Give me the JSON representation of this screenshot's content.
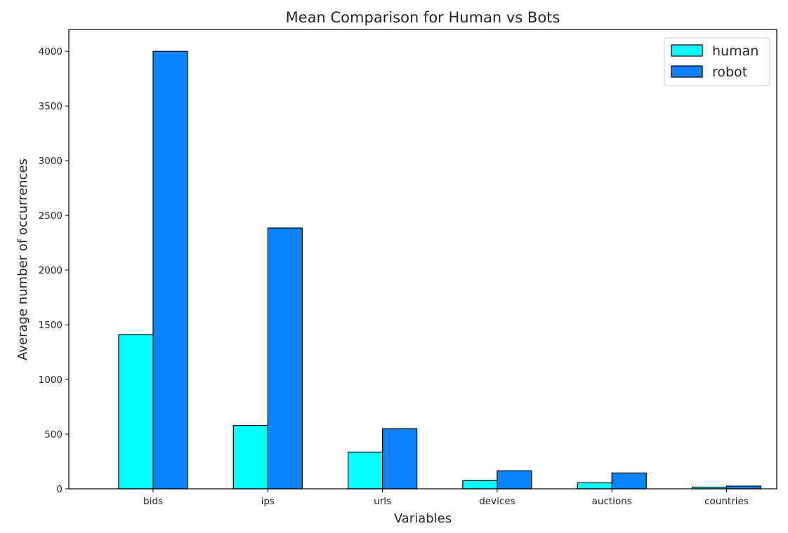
{
  "chart_data": {
    "type": "bar",
    "title": "Mean Comparison for Human vs Bots",
    "xlabel": "Variables",
    "ylabel": "Average number of occurrences",
    "categories": [
      "bids",
      "ips",
      "urls",
      "devices",
      "auctions",
      "countries"
    ],
    "series": [
      {
        "name": "human",
        "color": "#00ffff",
        "values": [
          1410,
          580,
          335,
          75,
          55,
          15
        ]
      },
      {
        "name": "robot",
        "color": "#0f83ff",
        "values": [
          4000,
          2385,
          550,
          165,
          145,
          25
        ]
      }
    ],
    "ylim": [
      0,
      4200
    ],
    "yticks": [
      0,
      500,
      1000,
      1500,
      2000,
      2500,
      3000,
      3500,
      4000
    ],
    "grid": false,
    "legend_position": "top-right"
  }
}
